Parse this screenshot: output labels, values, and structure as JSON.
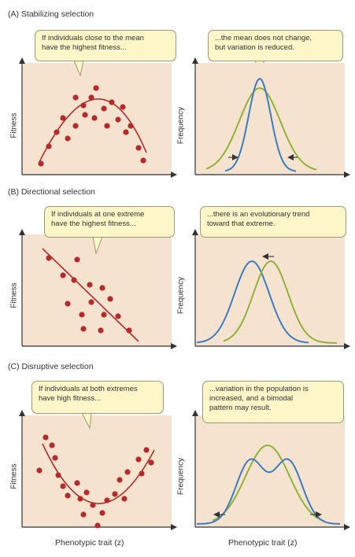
{
  "sections": [
    {
      "title": "(A)  Stabilizing selection",
      "left_callout": [
        "If individuals close to the mean",
        "have the highest fitness..."
      ],
      "right_callout": [
        "...the mean does not change,",
        "but variation is reduced."
      ]
    },
    {
      "title": "(B)  Directional selection",
      "left_callout": [
        "If individuals at one extreme",
        "have the highest fitness..."
      ],
      "right_callout": [
        "...there is an evolutionary trend",
        "toward that extreme."
      ]
    },
    {
      "title": "(C)  Disruptive selection",
      "left_callout": [
        "If individuals at both extremes",
        "have high fitness..."
      ],
      "right_callout": [
        "...variation in the population is",
        "increased, and a bimodal",
        "pattern may result."
      ]
    }
  ],
  "axes": {
    "fitness": "Fitness",
    "frequency": "Frequency",
    "x_label": "Phenotypic trait (z)"
  },
  "colors": {
    "panel_bg": "#f5e3cf",
    "dot": "#b52b2b",
    "fit_line": "#b52b2b",
    "curve_before": "#8fb33a",
    "curve_after": "#3c7cc1",
    "callout_bg": "#fdf6c8"
  }
}
